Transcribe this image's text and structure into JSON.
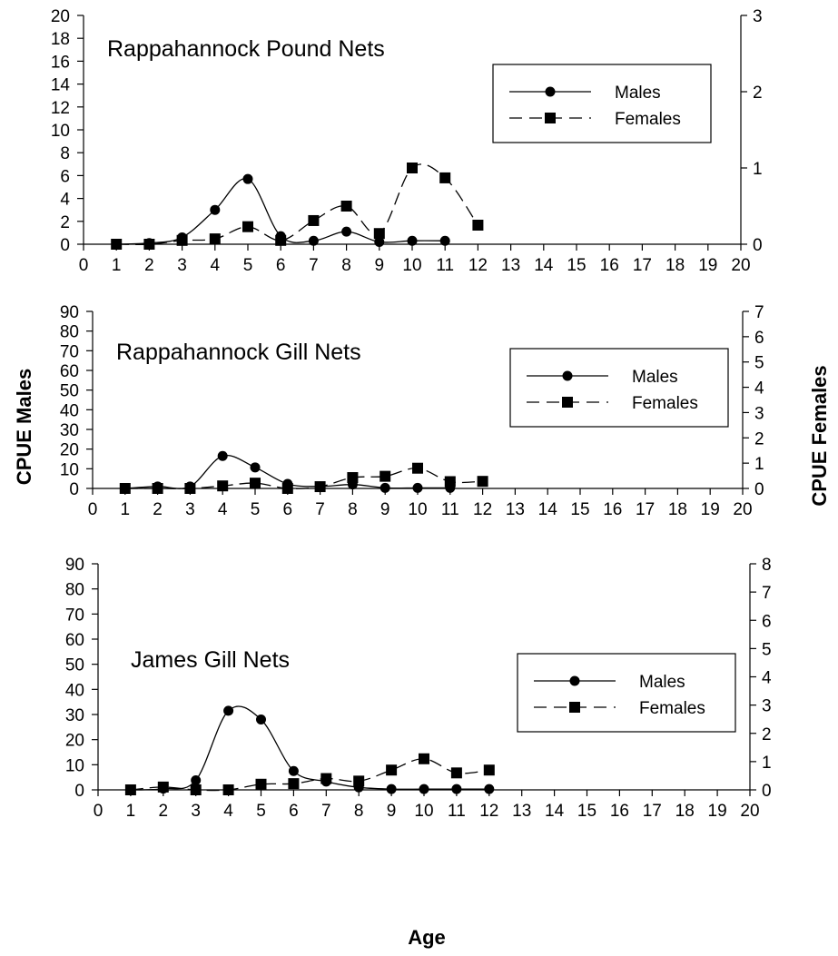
{
  "figure": {
    "xlabel": "Age",
    "ylabel_left": "CPUE Males",
    "ylabel_right": "CPUE Females"
  },
  "chart_data": [
    {
      "type": "line",
      "title": "Rappahannock Pound Nets",
      "x_ticks": [
        0,
        1,
        2,
        3,
        4,
        5,
        6,
        7,
        8,
        9,
        10,
        11,
        12,
        13,
        14,
        15,
        16,
        17,
        18,
        19,
        20
      ],
      "y_left_ticks": [
        0,
        2,
        4,
        6,
        8,
        10,
        12,
        14,
        16,
        18,
        20
      ],
      "y_right_ticks": [
        0,
        1,
        2,
        3
      ],
      "xlim": [
        0,
        20
      ],
      "ylim_left": [
        0,
        20
      ],
      "ylim_right": [
        0,
        3
      ],
      "legend_position": "top-right",
      "series": [
        {
          "name": "Males",
          "axis": "left",
          "marker": "circle",
          "line": "solid",
          "x": [
            1,
            2,
            3,
            4,
            5,
            6,
            7,
            8,
            9,
            10,
            11
          ],
          "y": [
            0.0,
            0.1,
            0.6,
            3.0,
            5.7,
            0.7,
            0.3,
            1.1,
            0.2,
            0.3,
            0.3
          ]
        },
        {
          "name": "Females",
          "axis": "right",
          "marker": "square",
          "line": "dashed",
          "x": [
            1,
            2,
            3,
            4,
            5,
            6,
            7,
            8,
            9,
            10,
            11,
            12
          ],
          "y": [
            0.0,
            0.0,
            0.05,
            0.07,
            0.23,
            0.05,
            0.31,
            0.5,
            0.14,
            1.0,
            0.87,
            0.25
          ]
        }
      ]
    },
    {
      "type": "line",
      "title": "Rappahannock Gill Nets",
      "x_ticks": [
        0,
        1,
        2,
        3,
        4,
        5,
        6,
        7,
        8,
        9,
        10,
        11,
        12,
        13,
        14,
        15,
        16,
        17,
        18,
        19,
        20
      ],
      "y_left_ticks": [
        0,
        10,
        20,
        30,
        40,
        50,
        60,
        70,
        80,
        90
      ],
      "y_right_ticks": [
        0,
        1,
        2,
        3,
        4,
        5,
        6,
        7
      ],
      "xlim": [
        0,
        20
      ],
      "ylim_left": [
        0,
        90
      ],
      "ylim_right": [
        0,
        7
      ],
      "legend_position": "top-right",
      "series": [
        {
          "name": "Males",
          "axis": "left",
          "marker": "circle",
          "line": "solid",
          "x": [
            1,
            2,
            3,
            4,
            5,
            6,
            7,
            8,
            9,
            10,
            11
          ],
          "y": [
            0.0,
            1.0,
            1.0,
            16.5,
            10.7,
            2.3,
            1.0,
            2.0,
            0.3,
            0.3,
            0.3
          ]
        },
        {
          "name": "Females",
          "axis": "right",
          "marker": "square",
          "line": "dashed",
          "x": [
            1,
            2,
            3,
            4,
            5,
            6,
            7,
            8,
            9,
            10,
            11,
            12
          ],
          "y": [
            0.0,
            0.0,
            0.0,
            0.1,
            0.21,
            0.0,
            0.07,
            0.43,
            0.48,
            0.8,
            0.27,
            0.28
          ]
        }
      ]
    },
    {
      "type": "line",
      "title": "James Gill Nets",
      "x_ticks": [
        0,
        1,
        2,
        3,
        4,
        5,
        6,
        7,
        8,
        9,
        10,
        11,
        12,
        13,
        14,
        15,
        16,
        17,
        18,
        19,
        20
      ],
      "y_left_ticks": [
        0,
        10,
        20,
        30,
        40,
        50,
        60,
        70,
        80,
        90
      ],
      "y_right_ticks": [
        0,
        1,
        2,
        3,
        4,
        5,
        6,
        7,
        8
      ],
      "xlim": [
        0,
        20
      ],
      "ylim_left": [
        0,
        90
      ],
      "ylim_right": [
        0,
        8
      ],
      "legend_position": "top-right",
      "series": [
        {
          "name": "Males",
          "axis": "left",
          "marker": "circle",
          "line": "solid",
          "x": [
            1,
            2,
            3,
            4,
            5,
            6,
            7,
            8,
            9,
            10,
            11,
            12
          ],
          "y": [
            0.0,
            0.5,
            3.8,
            31.5,
            28.0,
            7.5,
            3.3,
            1.0,
            0.3,
            0.3,
            0.3,
            0.3
          ]
        },
        {
          "name": "Females",
          "axis": "right",
          "marker": "square",
          "line": "dashed",
          "x": [
            1,
            2,
            3,
            4,
            5,
            6,
            7,
            8,
            9,
            10,
            11,
            12
          ],
          "y": [
            0.0,
            0.1,
            0.0,
            0.0,
            0.2,
            0.22,
            0.4,
            0.31,
            0.7,
            1.1,
            0.6,
            0.7
          ]
        }
      ]
    }
  ]
}
